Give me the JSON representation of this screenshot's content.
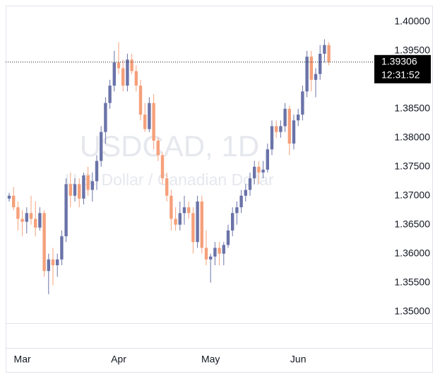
{
  "chart_data": {
    "type": "candlestick",
    "title": "USDCAD, 1D",
    "subtitle": "U.S. Dollar / Canadian Dollar",
    "categories": [
      null,
      null,
      null,
      "Mar",
      null,
      null,
      null,
      null,
      null,
      null,
      null,
      null,
      null,
      null,
      null,
      null,
      null,
      null,
      null,
      null,
      null,
      null,
      null,
      null,
      null,
      "Apr",
      null,
      null,
      null,
      null,
      null,
      null,
      null,
      null,
      null,
      null,
      null,
      null,
      null,
      null,
      null,
      null,
      null,
      null,
      null,
      null,
      "May",
      null,
      null,
      null,
      null,
      null,
      null,
      null,
      null,
      null,
      null,
      null,
      null,
      null,
      null,
      null,
      null,
      null,
      null,
      null,
      "Jun",
      null,
      null,
      null,
      null,
      null,
      null,
      null
    ],
    "open": [
      1.3695,
      1.37,
      1.368,
      1.366,
      1.3655,
      1.367,
      1.366,
      1.3645,
      1.367,
      1.357,
      1.359,
      1.358,
      1.359,
      1.363,
      1.372,
      1.37,
      1.372,
      1.3695,
      1.3735,
      1.371,
      1.3725,
      1.376,
      1.381,
      1.386,
      1.389,
      1.393,
      1.392,
      1.389,
      1.3935,
      1.3915,
      1.389,
      1.384,
      1.3815,
      1.386,
      1.3795,
      1.377,
      1.373,
      1.37,
      1.366,
      1.365,
      1.367,
      1.368,
      1.367,
      1.362,
      1.369,
      1.361,
      1.359,
      1.3595,
      1.361,
      1.36,
      1.3615,
      1.364,
      1.367,
      1.368,
      1.37,
      1.371,
      1.373,
      1.375,
      1.374,
      1.3745,
      1.378,
      1.382,
      1.381,
      1.382,
      1.385,
      1.379,
      1.383,
      1.384,
      1.388,
      1.394,
      1.39,
      1.391,
      1.3945,
      1.396
    ],
    "high": [
      1.3705,
      1.3715,
      1.369,
      1.3675,
      1.368,
      1.37,
      1.369,
      1.368,
      1.3675,
      1.36,
      1.361,
      1.36,
      1.364,
      1.373,
      1.374,
      1.373,
      1.373,
      1.374,
      1.375,
      1.374,
      1.377,
      1.382,
      1.387,
      1.39,
      1.395,
      1.3965,
      1.3935,
      1.3945,
      1.3945,
      1.3925,
      1.39,
      1.386,
      1.387,
      1.3875,
      1.38,
      1.3775,
      1.374,
      1.371,
      1.368,
      1.369,
      1.37,
      1.369,
      1.368,
      1.37,
      1.37,
      1.364,
      1.36,
      1.362,
      1.362,
      1.362,
      1.365,
      1.368,
      1.369,
      1.371,
      1.372,
      1.374,
      1.376,
      1.376,
      1.376,
      1.379,
      1.383,
      1.383,
      1.383,
      1.386,
      1.3855,
      1.384,
      1.385,
      1.389,
      1.395,
      1.395,
      1.392,
      1.396,
      1.397,
      1.3965
    ],
    "low": [
      1.369,
      1.3675,
      1.364,
      1.363,
      1.3635,
      1.365,
      1.363,
      1.364,
      1.356,
      1.353,
      1.3545,
      1.356,
      1.358,
      1.362,
      1.368,
      1.369,
      1.368,
      1.3685,
      1.37,
      1.369,
      1.371,
      1.375,
      1.379,
      1.385,
      1.388,
      1.391,
      1.388,
      1.388,
      1.391,
      1.388,
      1.383,
      1.381,
      1.381,
      1.378,
      1.376,
      1.372,
      1.369,
      1.364,
      1.364,
      1.364,
      1.365,
      1.366,
      1.36,
      1.361,
      1.36,
      1.358,
      1.355,
      1.358,
      1.358,
      1.358,
      1.361,
      1.363,
      1.365,
      1.367,
      1.369,
      1.37,
      1.372,
      1.372,
      1.373,
      1.374,
      1.377,
      1.38,
      1.38,
      1.381,
      1.377,
      1.378,
      1.382,
      1.383,
      1.387,
      1.388,
      1.387,
      1.39,
      1.393,
      1.3925
    ],
    "close": [
      1.37,
      1.368,
      1.366,
      1.3655,
      1.367,
      1.366,
      1.3645,
      1.367,
      1.357,
      1.359,
      1.358,
      1.359,
      1.363,
      1.372,
      1.37,
      1.372,
      1.3695,
      1.3735,
      1.371,
      1.3725,
      1.376,
      1.381,
      1.386,
      1.389,
      1.393,
      1.392,
      1.389,
      1.3935,
      1.3915,
      1.389,
      1.384,
      1.3815,
      1.386,
      1.3795,
      1.377,
      1.373,
      1.37,
      1.366,
      1.365,
      1.367,
      1.368,
      1.367,
      1.362,
      1.369,
      1.361,
      1.359,
      1.3595,
      1.361,
      1.36,
      1.3615,
      1.364,
      1.367,
      1.368,
      1.37,
      1.371,
      1.373,
      1.375,
      1.374,
      1.3745,
      1.378,
      1.382,
      1.381,
      1.382,
      1.385,
      1.379,
      1.383,
      1.384,
      1.388,
      1.394,
      1.39,
      1.391,
      1.3945,
      1.396,
      1.39306
    ],
    "up_color": "#6a73a8",
    "down_color": "#f5a07a",
    "last_time": "12:31:52",
    "ylim": [
      1.348,
      1.4028
    ],
    "yticks": [
      {
        "value": 1.35,
        "label": "1.35000"
      },
      {
        "value": 1.355,
        "label": "1.35500"
      },
      {
        "value": 1.36,
        "label": "1.36000"
      },
      {
        "value": 1.365,
        "label": "1.36500"
      },
      {
        "value": 1.37,
        "label": "1.37000"
      },
      {
        "value": 1.375,
        "label": "1.37500"
      },
      {
        "value": 1.38,
        "label": "1.38000"
      },
      {
        "value": 1.385,
        "label": "1.38500"
      },
      {
        "value": 1.39,
        "label": "1.39000"
      },
      {
        "value": 1.395,
        "label": "1.39500"
      },
      {
        "value": 1.4,
        "label": "1.40000"
      }
    ],
    "grid": false
  }
}
